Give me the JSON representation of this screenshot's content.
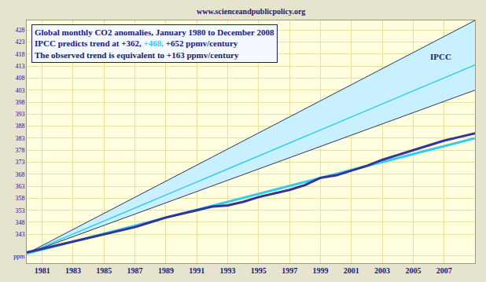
{
  "chart_data": {
    "type": "line",
    "source": "www.scienceandpublicpolicy.org",
    "title": "Global monthly CO2 anomalies, January 1980 to December 2008",
    "subtitle": [
      [
        {
          "text": "IPCC predicts trend at +362, "
        },
        {
          "text": "+468,",
          "color": "#33ccee"
        },
        {
          "text": " +652 ppmv/century"
        }
      ],
      [
        {
          "text": "The observed trend is equivalent to +163 ppmv/century"
        }
      ]
    ],
    "annotations": [
      {
        "text": "IPCC",
        "x": 2006.8,
        "y": 417
      }
    ],
    "xlim": [
      1980,
      2009
    ],
    "xticks": [
      1981,
      1983,
      1985,
      1987,
      1989,
      1991,
      1993,
      1995,
      1997,
      1999,
      2001,
      2003,
      2005,
      2007
    ],
    "ylim": [
      331,
      432
    ],
    "yticks": [
      {
        "value": 334,
        "label": "ppm"
      },
      343,
      348,
      353,
      358,
      363,
      368,
      373,
      378,
      383,
      388,
      393,
      398,
      403,
      408,
      413,
      418,
      423,
      428
    ],
    "grid": true,
    "series": [
      {
        "type": "band",
        "x": [
          1980,
          2009
        ],
        "low": [
          335,
          403
        ],
        "high": [
          335,
          432
        ],
        "color": "#c8f0ff"
      },
      {
        "type": "line",
        "x": [
          1980,
          2009
        ],
        "values": [
          335,
          413.5
        ],
        "color": "#33ccee"
      },
      {
        "type": "line",
        "x": [
          1980,
          2009
        ],
        "values": [
          335,
          383
        ],
        "color": "#33ccee"
      },
      {
        "type": "line",
        "color": "#333399",
        "x": [
          1980,
          1981,
          1982,
          1983,
          1984,
          1985,
          1986,
          1987,
          1988,
          1989,
          1990,
          1991,
          1992,
          1993,
          1994,
          1995,
          1996,
          1997,
          1998,
          1999,
          2000,
          2001,
          2002,
          2003,
          2004,
          2005,
          2006,
          2007,
          2008,
          2009
        ],
        "values": [
          335.5,
          337,
          338.5,
          340,
          341.5,
          343,
          344.5,
          346,
          348,
          350,
          351.5,
          353,
          354.5,
          355,
          356.5,
          358.5,
          360,
          361.5,
          363.5,
          366.5,
          367.5,
          369.5,
          371.5,
          374,
          376,
          378,
          380,
          382,
          383.5,
          385
        ]
      }
    ]
  }
}
